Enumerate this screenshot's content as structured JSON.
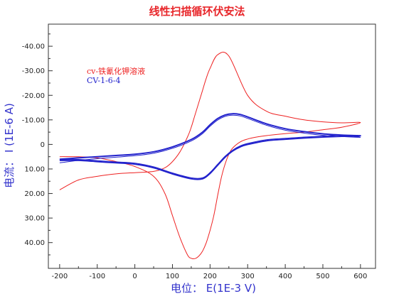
{
  "chart_data": {
    "type": "line",
    "title": "线性扫描循环伏安法",
    "xlabel": "电位： E(1E-3 V)",
    "ylabel": "电流： I (1E-6 A)",
    "xlim": [
      -230,
      640
    ],
    "ylim": [
      -49,
      50.5
    ],
    "y_inverted": true,
    "x_ticks": [
      -200,
      -100,
      0,
      100,
      200,
      300,
      400,
      500,
      600
    ],
    "x_tick_labels": [
      "-200",
      "-100",
      "0",
      "100",
      "200",
      "300",
      "400",
      "500",
      "600"
    ],
    "y_ticks": [
      -40,
      -30,
      -20,
      -10,
      0,
      10,
      20,
      30,
      40
    ],
    "y_tick_labels": [
      "-40.00",
      "-30.00",
      "-20.00",
      "-10.00",
      "0",
      "10.00",
      "20.00",
      "30.00",
      "40.00"
    ],
    "grid": false,
    "colors": {
      "title": "#e8262a",
      "axis_label": "#3333cc",
      "series_red": "#ee2222",
      "series_blue": "#2222cc"
    },
    "legend": [
      {
        "text": "cv-铁氰化钾溶液",
        "color": "#ee2222"
      },
      {
        "text": "CV-1-6-4",
        "color": "#2222cc"
      }
    ],
    "series": [
      {
        "color": "#ee2222",
        "stroke_width": 1,
        "x": [
          -200,
          -150,
          -100,
          -50,
          0,
          50,
          80,
          100,
          120,
          140,
          150,
          160,
          170,
          180,
          190,
          200,
          220,
          250,
          300,
          350,
          400,
          450,
          500,
          550,
          600,
          550,
          500,
          450,
          400,
          350,
          320,
          300,
          280,
          260,
          250,
          240,
          230,
          220,
          210,
          200,
          190,
          180,
          170,
          160,
          150,
          140,
          120,
          100,
          80,
          50,
          0,
          -50,
          -100,
          -150,
          -200
        ],
        "y": [
          18.5,
          14.5,
          13,
          12,
          11.5,
          11,
          9.5,
          7,
          3,
          -3,
          -7,
          -12,
          -17,
          -22,
          -27,
          -31,
          -36.5,
          -36,
          -20,
          -13.5,
          -11.5,
          -10,
          -9.2,
          -8.8,
          -8.9,
          -7,
          -6,
          -5,
          -4.4,
          -3.6,
          -2.9,
          -2.2,
          -1,
          1.5,
          4,
          8,
          13.5,
          21,
          29,
          35,
          40,
          43.5,
          45.5,
          46.5,
          46.4,
          45,
          38,
          29,
          20,
          13,
          9,
          7,
          5.5,
          5,
          5
        ]
      },
      {
        "color": "#2222cc",
        "stroke_width": 2,
        "x": [
          -200,
          -150,
          -100,
          -50,
          0,
          50,
          100,
          150,
          180,
          200,
          220,
          240,
          260,
          280,
          300,
          350,
          400,
          450,
          500,
          550,
          600,
          550,
          500,
          450,
          400,
          350,
          300,
          280,
          260,
          240,
          220,
          200,
          180,
          150,
          100,
          50,
          0,
          -50,
          -100,
          -150,
          -200
        ],
        "y": [
          6,
          5.5,
          5,
          4.5,
          4,
          3,
          1,
          -2,
          -5,
          -8,
          -10.5,
          -12,
          -12.5,
          -12.2,
          -11.2,
          -8.4,
          -6.4,
          -5.2,
          -4.3,
          -3.8,
          -3.5,
          -3.3,
          -3,
          -2.6,
          -2.1,
          -1.5,
          0,
          1,
          2.7,
          5.2,
          8.5,
          11.8,
          14,
          14,
          12,
          9.5,
          8,
          7.5,
          7,
          6.5,
          6.5
        ]
      },
      {
        "color": "#2222cc",
        "stroke_width": 1,
        "x": [
          -200,
          -150,
          -100,
          -50,
          0,
          50,
          100,
          150,
          180,
          200,
          220,
          240,
          260,
          280,
          300,
          350,
          400,
          450,
          500,
          550,
          600,
          550,
          500,
          450,
          400,
          350,
          300,
          280,
          260,
          240,
          220,
          200,
          180,
          150,
          100,
          50,
          0,
          -50,
          -100,
          -150,
          -200
        ],
        "y": [
          7.5,
          6.5,
          5.8,
          5.2,
          4.6,
          3.6,
          1.6,
          -1.4,
          -4.4,
          -7.4,
          -9.9,
          -11.4,
          -11.9,
          -11.6,
          -10.6,
          -7.8,
          -5.8,
          -4.6,
          -3.7,
          -3.2,
          -2.9,
          -3.7,
          -3.4,
          -3,
          -2.5,
          -1.9,
          -0.4,
          0.6,
          2.3,
          4.8,
          8.1,
          11.4,
          13.6,
          13.6,
          11.6,
          9.1,
          7.6,
          7.1,
          6.6,
          6.1,
          6.1
        ]
      }
    ]
  }
}
